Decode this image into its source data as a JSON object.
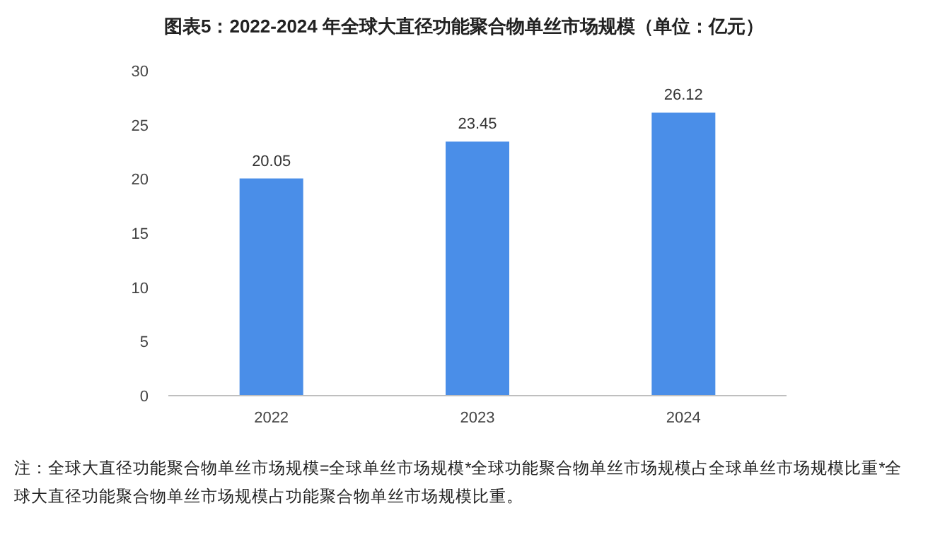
{
  "chart_data": {
    "type": "bar",
    "title": "图表5：2022-2024 年全球大直径功能聚合物单丝市场规模（单位：亿元）",
    "categories": [
      "2022",
      "2023",
      "2024"
    ],
    "values": [
      20.05,
      23.45,
      26.12
    ],
    "color": "#4a8ee8",
    "ylim": [
      0,
      30
    ],
    "yticks": [
      0,
      5,
      10,
      15,
      20,
      25,
      30
    ],
    "grid": false,
    "data_labels": true,
    "annotations": [
      "注：全球大直径功能聚合物单丝市场规模=全球单丝市场规模*全球功能聚合物单丝市场规模占全球单丝市场规模比重*全球大直径功能聚合物单丝市场规模占功能聚合物单丝市场规模比重。"
    ]
  }
}
